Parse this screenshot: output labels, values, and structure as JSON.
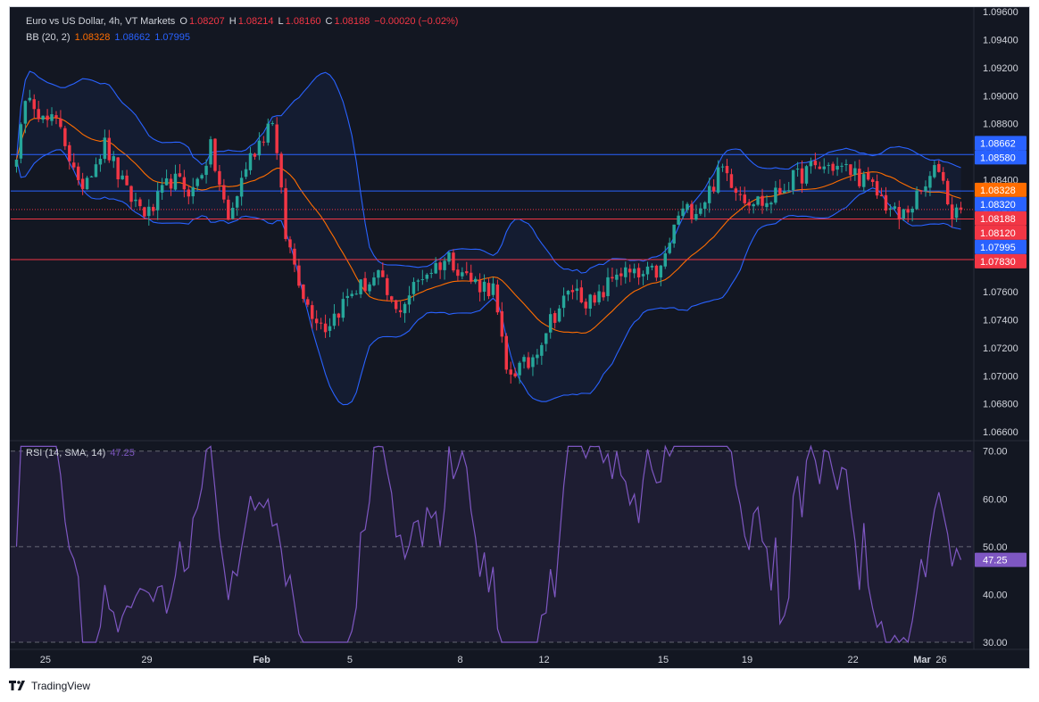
{
  "header": {
    "symbol": "Euro vs US Dollar, 4h, VT Markets",
    "o_label": "O",
    "o": "1.08207",
    "h_label": "H",
    "h": "1.08214",
    "l_label": "L",
    "l": "1.08160",
    "c_label": "C",
    "c": "1.08188",
    "change": "−0.00020 (−0.02%)"
  },
  "bb_legend": {
    "label": "BB (20, 2)",
    "basis": "1.08328",
    "upper": "1.08662",
    "lower": "1.07995"
  },
  "rsi_legend": {
    "label": "RSI (14, SMA, 14)",
    "value": "47.25"
  },
  "footer": {
    "brand": "TradingView"
  },
  "colors": {
    "background": "#131722",
    "up": "#26a69a",
    "down": "#f23645",
    "basis": "#ff6d00",
    "band": "#2962ff",
    "rsi": "#7e57c2",
    "level_blue": "#2962ff",
    "level_red": "#f23645"
  },
  "chart_data": [
    {
      "type": "candlestick",
      "title": "Euro vs US Dollar, 4h, VT Markets",
      "ylim": [
        1.0655,
        1.0962
      ],
      "y_ticks": [
        "1.09600",
        "1.09400",
        "1.09200",
        "1.09000",
        "1.08800",
        "1.08600",
        "1.08400",
        "1.08200",
        "1.08000",
        "1.07800",
        "1.07600",
        "1.07400",
        "1.07200",
        "1.07000",
        "1.06800",
        "1.06600"
      ],
      "x_tick_labels": [
        "25",
        "29",
        "Feb",
        "5",
        "8",
        "12",
        "15",
        "19",
        "22",
        "26",
        "Mar"
      ],
      "horizontal_levels": [
        {
          "value": 1.0858,
          "label": "1.08580",
          "color": "#2962ff"
        },
        {
          "value": 1.0832,
          "label": "1.08320",
          "color": "#2962ff"
        },
        {
          "value": 1.0812,
          "label": "1.08120",
          "color": "#f23645"
        },
        {
          "value": 1.0783,
          "label": "1.07830",
          "color": "#f23645"
        }
      ],
      "price_tags": [
        {
          "label": "1.08662",
          "value": 1.08662,
          "color": "#2962ff"
        },
        {
          "label": "1.08580",
          "value": 1.0858,
          "color": "#2962ff"
        },
        {
          "label": "1.08328",
          "value": 1.08328,
          "color": "#ff6d00"
        },
        {
          "label": "1.08320",
          "value": 1.0832,
          "color": "#2962ff"
        },
        {
          "label": "1.08188",
          "value": 1.08188,
          "color": "#f23645"
        },
        {
          "label": "1.08120",
          "value": 1.0812,
          "color": "#f23645"
        },
        {
          "label": "1.07995",
          "value": 1.07995,
          "color": "#2962ff"
        },
        {
          "label": "1.07830",
          "value": 1.0783,
          "color": "#f23645"
        }
      ],
      "last_close": 1.08188,
      "close_path": [
        [
          0,
          1.086
        ],
        [
          3,
          1.0905
        ],
        [
          6,
          1.0882
        ],
        [
          10,
          1.088
        ],
        [
          14,
          1.0833
        ],
        [
          20,
          1.0865
        ],
        [
          25,
          1.083
        ],
        [
          30,
          1.0815
        ],
        [
          35,
          1.084
        ],
        [
          40,
          1.0832
        ],
        [
          44,
          1.0862
        ],
        [
          48,
          1.081
        ],
        [
          52,
          1.085
        ],
        [
          58,
          1.0885
        ],
        [
          61,
          1.08
        ],
        [
          66,
          1.075
        ],
        [
          70,
          1.0735
        ],
        [
          76,
          1.076
        ],
        [
          82,
          1.077
        ],
        [
          86,
          1.0745
        ],
        [
          92,
          1.0772
        ],
        [
          98,
          1.0785
        ],
        [
          103,
          1.0768
        ],
        [
          108,
          1.0762
        ],
        [
          111,
          1.0702
        ],
        [
          116,
          1.0708
        ],
        [
          121,
          1.074
        ],
        [
          126,
          1.0762
        ],
        [
          131,
          1.075
        ],
        [
          136,
          1.0775
        ],
        [
          141,
          1.077
        ],
        [
          146,
          1.0775
        ],
        [
          150,
          1.0815
        ],
        [
          155,
          1.0822
        ],
        [
          160,
          1.0848
        ],
        [
          165,
          1.0828
        ],
        [
          170,
          1.0823
        ],
        [
          175,
          1.0838
        ],
        [
          180,
          1.0848
        ],
        [
          185,
          1.085
        ],
        [
          190,
          1.0845
        ],
        [
          195,
          1.083
        ],
        [
          200,
          1.0812
        ],
        [
          205,
          1.083
        ],
        [
          209,
          1.085
        ],
        [
          212,
          1.0815
        ],
        [
          214,
          1.08188
        ]
      ],
      "series": [
        {
          "name": "BB (20, 2)",
          "basis_last": 1.08328,
          "upper_last": 1.08662,
          "lower_last": 1.07995
        }
      ]
    },
    {
      "type": "line",
      "title": "RSI (14, SMA, 14)",
      "ylim": [
        28.5,
        72
      ],
      "y_ticks": [
        "70.00",
        "60.00",
        "50.00",
        "40.00",
        "30.00"
      ],
      "levels": [
        70,
        50,
        30
      ],
      "last": 47.25,
      "last_label": "47.25"
    }
  ]
}
